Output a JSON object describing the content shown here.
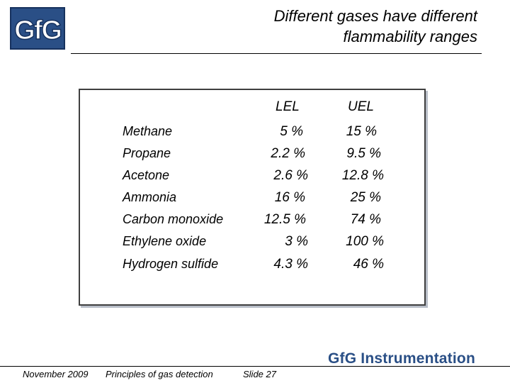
{
  "logo": {
    "text": "GfG",
    "color": "#2a4f86"
  },
  "title": {
    "line1": "Different  gases have different",
    "line2": "flammability ranges"
  },
  "table": {
    "headers": {
      "lel": "LEL",
      "uel": "UEL"
    },
    "rows": [
      {
        "gas": "Methane",
        "lel": "5 %",
        "uel": "15 %"
      },
      {
        "gas": "Propane",
        "lel": "2.2 %",
        "uel": "9.5 %"
      },
      {
        "gas": "Acetone",
        "lel": "2.6 %",
        "uel": "12.8 %"
      },
      {
        "gas": "Ammonia",
        "lel": "16 %",
        "uel": "25 %"
      },
      {
        "gas": "Carbon monoxide",
        "lel": "12.5 %",
        "uel": "74 %"
      },
      {
        "gas": "Ethylene oxide",
        "lel": "3 %",
        "uel": "100 %"
      },
      {
        "gas": "Hydrogen sulfide",
        "lel": "4.3 %",
        "uel": "46 %"
      }
    ]
  },
  "footer": {
    "date": "November 2009",
    "subject": "Principles of gas detection",
    "slide": "Slide 27",
    "brand": "GfG Instrumentation"
  }
}
